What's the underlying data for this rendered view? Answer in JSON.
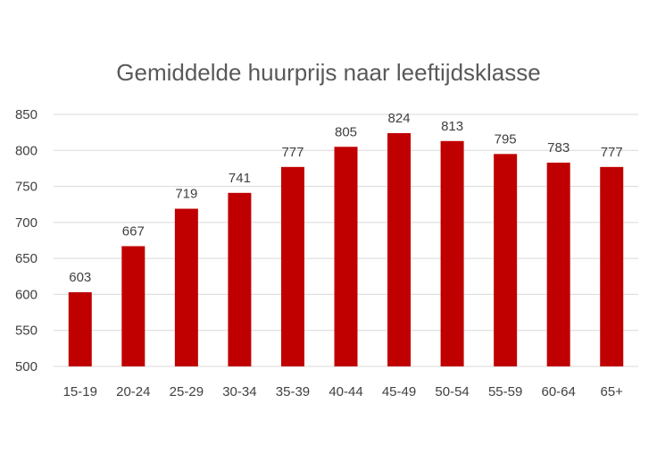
{
  "chart_data": {
    "type": "bar",
    "title": "Gemiddelde huurprijs naar leeftijdsklasse",
    "xlabel": "",
    "ylabel": "",
    "categories": [
      "15-19",
      "20-24",
      "25-29",
      "30-34",
      "35-39",
      "40-44",
      "45-49",
      "50-54",
      "55-59",
      "60-64",
      "65+"
    ],
    "values": [
      603,
      667,
      719,
      741,
      777,
      805,
      824,
      813,
      795,
      783,
      777
    ],
    "ylim": [
      500,
      850
    ],
    "yticks": [
      500,
      550,
      600,
      650,
      700,
      750,
      800,
      850
    ],
    "grid": true,
    "legend": "none",
    "bar_color": "#c00000"
  }
}
